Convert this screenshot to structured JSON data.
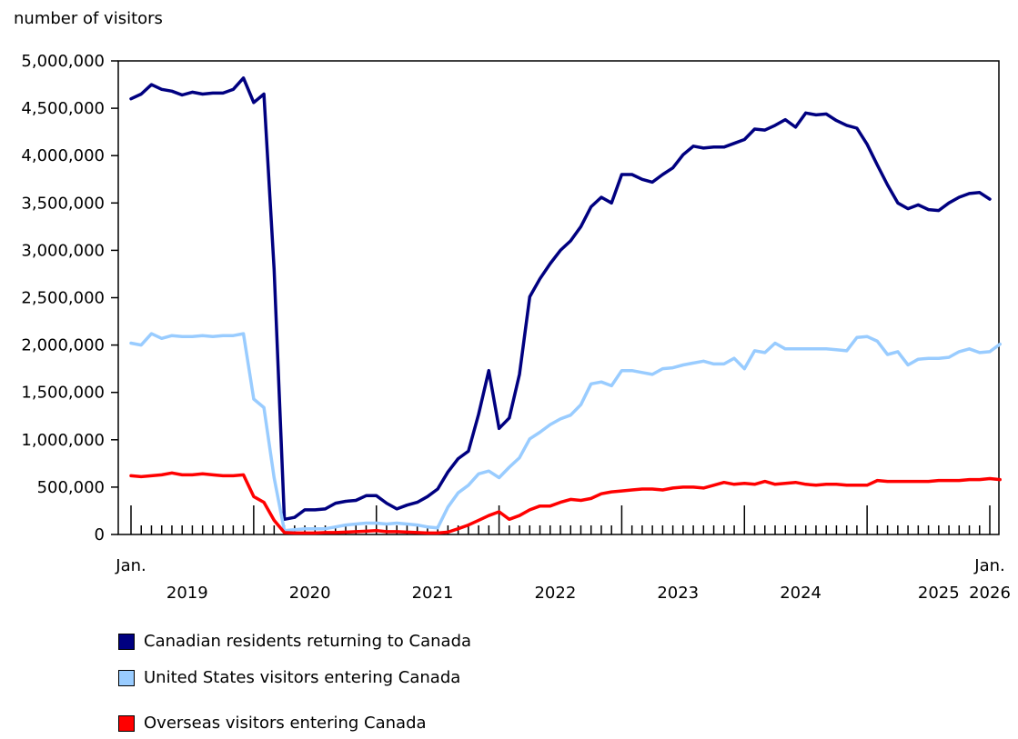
{
  "chart_data": {
    "type": "line",
    "ylabel": "number of visitors",
    "xlabel": "",
    "ylim": [
      0,
      5000000
    ],
    "y_ticks": [
      0,
      500000,
      1000000,
      1500000,
      2000000,
      2500000,
      3000000,
      3500000,
      4000000,
      4500000,
      5000000
    ],
    "y_tick_labels": [
      "0",
      "500,000",
      "1,000,000",
      "1,500,000",
      "2,000,000",
      "2,500,000",
      "3,000,000",
      "3,500,000",
      "4,000,000",
      "4,500,000",
      "5,000,000"
    ],
    "x_start": "2019-01",
    "x_end": "2026-01",
    "x_end_label": "Jan.",
    "x_start_label": "Jan.",
    "year_labels": [
      "2019",
      "2020",
      "2021",
      "2022",
      "2023",
      "2024",
      "2025",
      "2026"
    ],
    "grid": false,
    "legend_position": "bottom",
    "series": [
      {
        "name": "Canadian residents returning to Canada",
        "color": "#000080",
        "values": [
          4600000,
          4650000,
          4750000,
          4700000,
          4680000,
          4640000,
          4670000,
          4650000,
          4660000,
          4660000,
          4700000,
          4820000,
          4560000,
          4650000,
          2800000,
          160000,
          180000,
          260000,
          260000,
          270000,
          330000,
          350000,
          360000,
          410000,
          410000,
          330000,
          270000,
          310000,
          340000,
          400000,
          480000,
          660000,
          800000,
          880000,
          1270000,
          1730000,
          1120000,
          1230000,
          1690000,
          2510000,
          2700000,
          2860000,
          3000000,
          3100000,
          3250000,
          3460000,
          3560000,
          3500000,
          3800000,
          3800000,
          3750000,
          3720000,
          3800000,
          3870000,
          4010000,
          4100000,
          4080000,
          4090000,
          4090000,
          4130000,
          4170000,
          4280000,
          4270000,
          4320000,
          4380000,
          4300000,
          4450000,
          4430000,
          4440000,
          4370000,
          4320000,
          4290000,
          4120000,
          3900000,
          3690000,
          3500000,
          3440000,
          3480000,
          3430000,
          3420000,
          3500000,
          3560000,
          3600000,
          3610000,
          3540000
        ]
      },
      {
        "name": "United States visitors entering Canada",
        "color": "#99ccff",
        "values": [
          2020000,
          2000000,
          2120000,
          2070000,
          2100000,
          2090000,
          2090000,
          2100000,
          2090000,
          2100000,
          2100000,
          2120000,
          1430000,
          1340000,
          600000,
          40000,
          50000,
          60000,
          60000,
          60000,
          80000,
          100000,
          110000,
          120000,
          120000,
          110000,
          120000,
          110000,
          100000,
          80000,
          70000,
          290000,
          440000,
          520000,
          640000,
          670000,
          600000,
          710000,
          810000,
          1010000,
          1080000,
          1160000,
          1220000,
          1260000,
          1370000,
          1590000,
          1610000,
          1570000,
          1730000,
          1730000,
          1710000,
          1690000,
          1750000,
          1760000,
          1790000,
          1810000,
          1830000,
          1800000,
          1800000,
          1860000,
          1750000,
          1940000,
          1920000,
          2020000,
          1960000,
          1960000,
          1960000,
          1960000,
          1960000,
          1950000,
          1940000,
          2080000,
          2090000,
          2040000,
          1900000,
          1930000,
          1790000,
          1850000,
          1860000,
          1860000,
          1870000,
          1930000,
          1960000,
          1920000,
          1930000,
          2010000
        ]
      },
      {
        "name": "Overseas visitors entering Canada",
        "color": "#ff0000",
        "values": [
          620000,
          610000,
          620000,
          630000,
          650000,
          630000,
          630000,
          640000,
          630000,
          620000,
          620000,
          630000,
          400000,
          340000,
          150000,
          20000,
          15000,
          15000,
          15000,
          20000,
          20000,
          25000,
          30000,
          35000,
          40000,
          30000,
          30000,
          25000,
          20000,
          15000,
          15000,
          25000,
          60000,
          100000,
          150000,
          200000,
          240000,
          160000,
          200000,
          260000,
          300000,
          300000,
          340000,
          370000,
          360000,
          380000,
          430000,
          450000,
          460000,
          470000,
          480000,
          480000,
          470000,
          490000,
          500000,
          500000,
          490000,
          520000,
          550000,
          530000,
          540000,
          530000,
          560000,
          530000,
          540000,
          550000,
          530000,
          520000,
          530000,
          530000,
          520000,
          520000,
          520000,
          570000,
          560000,
          560000,
          560000,
          560000,
          560000,
          570000,
          570000,
          570000,
          580000,
          580000,
          590000,
          580000
        ]
      }
    ]
  }
}
